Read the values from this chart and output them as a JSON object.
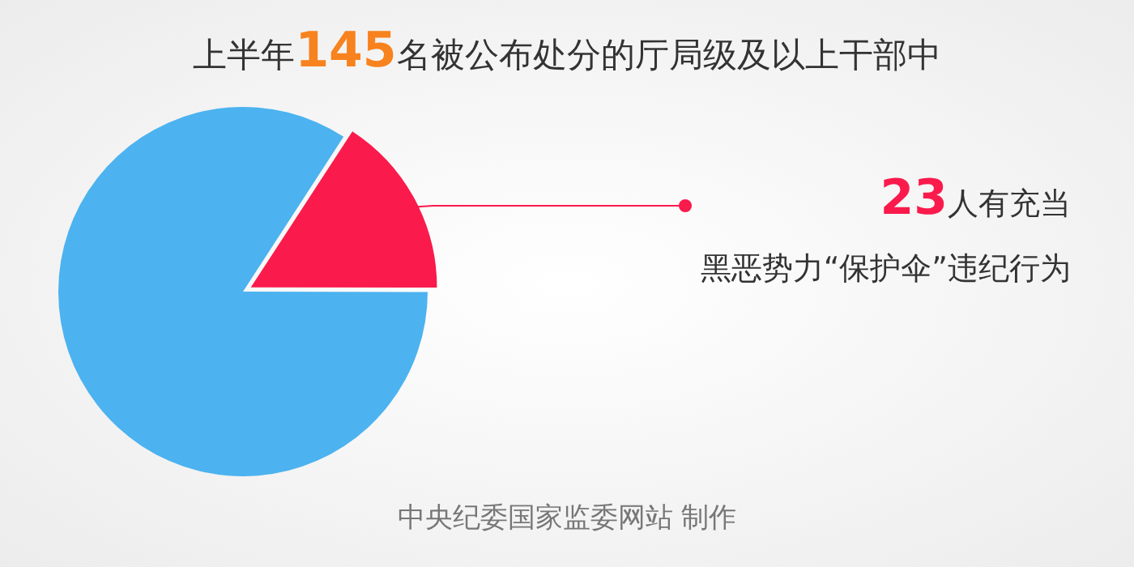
{
  "chart_data": {
    "type": "pie",
    "title": "上半年145名被公布处分的厅局级及以上干部中",
    "categories": [
      "人有充当黑恶势力“保护伞”违纪行为",
      null
    ],
    "values": [
      23,
      122
    ],
    "value_labels": [
      "23",
      null
    ],
    "colors": [
      "#fb1a4c",
      "#4db3f0"
    ],
    "annotations": [
      "中央纪委国家监委网站 制作"
    ]
  }
}
